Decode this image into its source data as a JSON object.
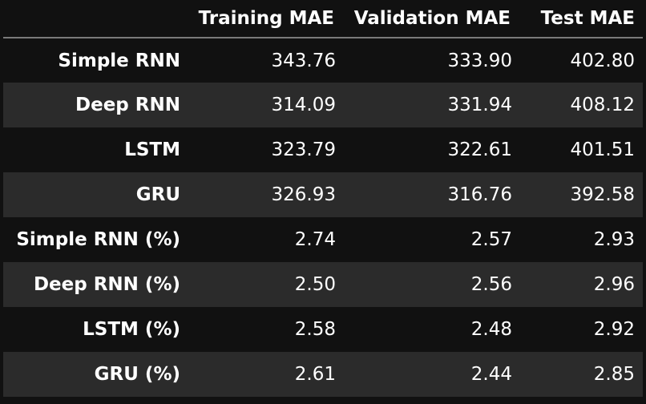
{
  "table": {
    "columns": [
      "",
      "Training MAE",
      "Validation MAE",
      "Test MAE"
    ],
    "rows": [
      {
        "label": "Simple RNN",
        "values": [
          "343.76",
          "333.90",
          "402.80"
        ]
      },
      {
        "label": "Deep RNN",
        "values": [
          "314.09",
          "331.94",
          "408.12"
        ]
      },
      {
        "label": "LSTM",
        "values": [
          "323.79",
          "322.61",
          "401.51"
        ]
      },
      {
        "label": "GRU",
        "values": [
          "326.93",
          "316.76",
          "392.58"
        ]
      },
      {
        "label": "Simple RNN (%)",
        "values": [
          "2.74",
          "2.57",
          "2.93"
        ]
      },
      {
        "label": "Deep RNN (%)",
        "values": [
          "2.50",
          "2.56",
          "2.96"
        ]
      },
      {
        "label": "LSTM (%)",
        "values": [
          "2.58",
          "2.48",
          "2.92"
        ]
      },
      {
        "label": "GRU (%)",
        "values": [
          "2.61",
          "2.44",
          "2.85"
        ]
      }
    ]
  }
}
